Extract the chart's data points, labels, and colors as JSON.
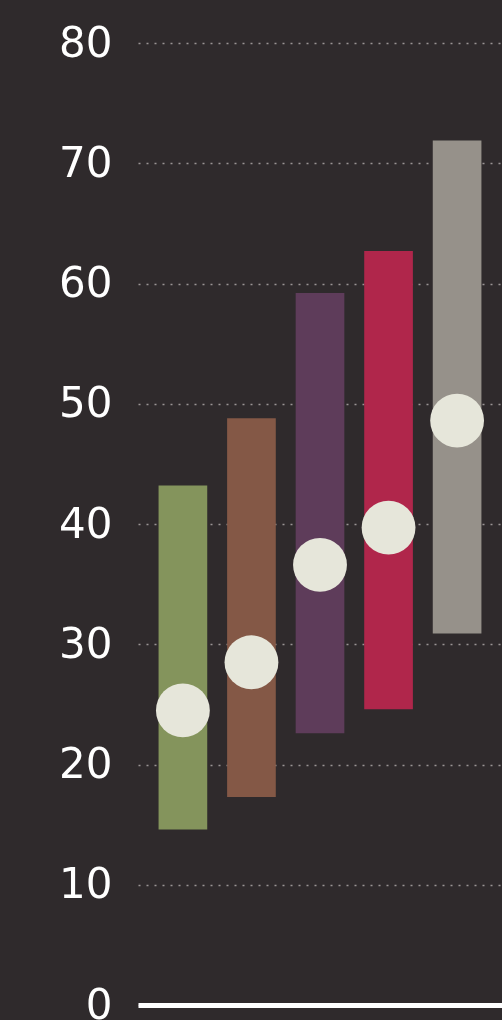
{
  "chart_data": {
    "type": "bar",
    "categories": [
      null,
      null,
      null,
      null,
      null
    ],
    "ylim": [
      0,
      80
    ],
    "yticks": [
      0,
      10,
      20,
      30,
      40,
      50,
      60,
      70,
      80
    ],
    "grid": "y",
    "tick_labels": "y",
    "series": [
      {
        "base": [
          14.6,
          17.3,
          22.6,
          24.6,
          30.9
        ],
        "values": [
          28.6,
          31.5,
          36.6,
          38.1,
          41.0
        ],
        "colors": [
          "#84945c",
          "#845846",
          "#5e3c5a",
          "#b0264b",
          "#96918a"
        ]
      },
      {
        "type": "scatter",
        "marker": "circle",
        "color": "#e6e6da",
        "values": [
          24.5,
          28.5,
          36.6,
          39.7,
          48.6
        ]
      }
    ]
  }
}
